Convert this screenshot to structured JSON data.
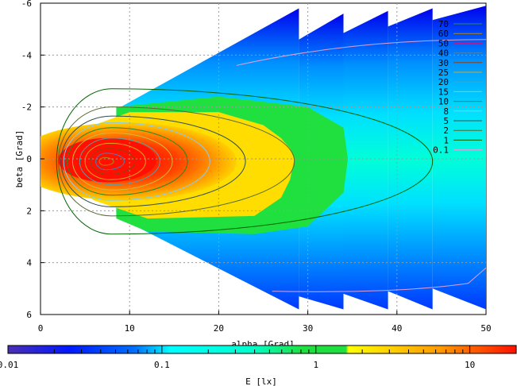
{
  "chart_data": {
    "type": "heatmap",
    "title": "",
    "xlabel": "alpha [Grad]",
    "ylabel": "beta [Grad]",
    "colorbar_label": "E [lx]",
    "xlim": [
      0,
      50
    ],
    "ylim": [
      -6,
      6
    ],
    "y_inverted": true,
    "grid": true,
    "x_ticks": [
      0,
      10,
      20,
      30,
      40,
      50
    ],
    "y_ticks": [
      -6,
      -4,
      -2,
      0,
      2,
      4,
      6
    ],
    "x_tick_labels": [
      "0",
      "10",
      "20",
      "30",
      "40",
      "50"
    ],
    "y_tick_labels": [
      "-6",
      "-4",
      "-2",
      "0",
      "2",
      "4",
      "6"
    ],
    "colorbar_scale": "log",
    "colorbar_range": [
      0.01,
      20
    ],
    "colorbar_ticks": [
      0.01,
      0.1,
      1,
      10
    ],
    "colorbar_tick_labels": [
      "0.01",
      "0.1",
      "1",
      "10"
    ],
    "legend_placement": "top-right",
    "contour_levels": [
      {
        "label": "70",
        "color": "#2e8b57"
      },
      {
        "label": "60",
        "color": "#b8860b"
      },
      {
        "label": "50",
        "color": "#c71585"
      },
      {
        "label": "40",
        "color": "#4682b4"
      },
      {
        "label": "30",
        "color": "#8b4513"
      },
      {
        "label": "25",
        "color": "#daa520"
      },
      {
        "label": "20",
        "color": "#5f9ea0"
      },
      {
        "label": "15",
        "color": "#cdbe3c"
      },
      {
        "label": "10",
        "color": "#228b22"
      },
      {
        "label": "8",
        "color": "#87ceeb"
      },
      {
        "label": "5",
        "color": "#2f4f4f"
      },
      {
        "label": "2",
        "color": "#556b2f"
      },
      {
        "label": "1",
        "color": "#006400"
      },
      {
        "label": "0.1",
        "color": "#dda0dd"
      }
    ],
    "colors": {
      "low": "#4b2fb4",
      "blue": "#0050ff",
      "cyan": "#00ffff",
      "green": "#20e040",
      "yellow": "#ffff00",
      "orange": "#ff9900",
      "high": "#ff0000"
    }
  }
}
